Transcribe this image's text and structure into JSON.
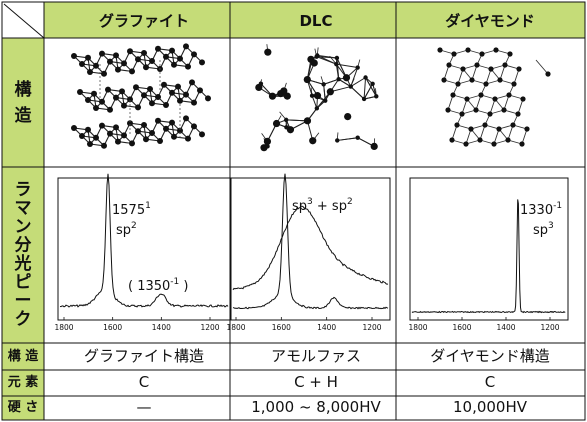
{
  "header": {
    "col1": "グラファイト",
    "col2": "DLC",
    "col3": "ダイヤモンド"
  },
  "row_labels": {
    "structure_chars": [
      "構",
      "造"
    ],
    "raman_chars": [
      "ラ",
      "マ",
      "ン",
      "分",
      "光",
      "ピ",
      "ー",
      "ク"
    ],
    "structure": "構 造",
    "element": "元 素",
    "hardness": "硬 さ"
  },
  "raman": {
    "graphite": {
      "peak_main": "1575",
      "peak_main_sup": "1",
      "peak_main_type": "sp",
      "peak_main_type_sup": "2",
      "peak_minor_open": "( 1350",
      "peak_minor_sup": "-1",
      "peak_minor_close": " )",
      "ticks": [
        "1800",
        "1600",
        "1400",
        "1200"
      ]
    },
    "dlc": {
      "label_a": "sp",
      "label_a_sup": "3",
      "label_plus": " + sp",
      "label_b_sup": "2",
      "ticks": [
        "1800",
        "1600",
        "1400",
        "1200"
      ]
    },
    "diamond": {
      "peak": "1330",
      "peak_sup": "-1",
      "type": "sp",
      "type_sup": "3",
      "ticks": [
        "1800",
        "1600",
        "1400",
        "1200"
      ]
    }
  },
  "rows": {
    "structure": [
      "グラファイト構造",
      "アモルファス",
      "ダイヤモンド構造"
    ],
    "element": [
      "C",
      "C + H",
      "C"
    ],
    "hardness": [
      "—",
      "1,000 ~ 8,000HV",
      "10,000HV"
    ]
  },
  "colors": {
    "header_bg": "#c5dc78",
    "side_bg": "#c5dc78",
    "line": "#111111"
  }
}
